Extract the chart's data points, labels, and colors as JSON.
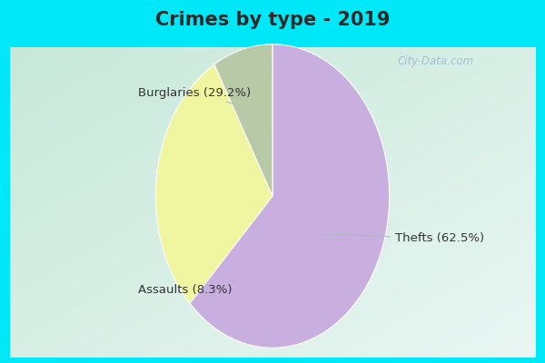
{
  "title": "Crimes by type - 2019",
  "slices": [
    {
      "label": "Thefts",
      "pct": 62.5,
      "color": "#c9aee0"
    },
    {
      "label": "Burglaries",
      "pct": 29.2,
      "color": "#f0f5a0"
    },
    {
      "label": "Assaults",
      "pct": 8.3,
      "color": "#b8c9a8"
    }
  ],
  "label_texts": [
    "Thefts (62.5%)",
    "Burglaries (29.2%)",
    "Assaults (8.3%)"
  ],
  "outer_bg": "#00e8f8",
  "inner_bg": "#d8ede5",
  "title_fontsize": 15,
  "title_color": "#2a2a2a",
  "label_color": "#333333",
  "label_fontsize": 9.5,
  "watermark": "City-Data.com",
  "startangle": 90
}
